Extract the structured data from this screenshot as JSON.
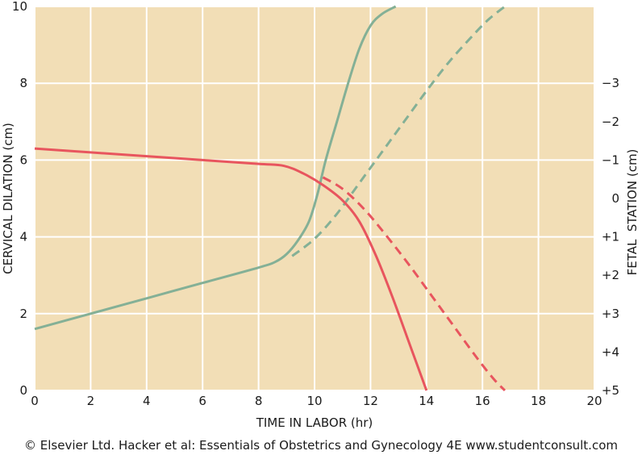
{
  "chart_data": {
    "type": "line",
    "xlabel": "TIME IN LABOR (hr)",
    "ylabel": "CERVICAL DILATION (cm)",
    "y2label": "FETAL  STATION (cm)",
    "xlim": [
      0,
      20
    ],
    "ylim": [
      0,
      10
    ],
    "y2lim": [
      5,
      -5
    ],
    "x_ticks": [
      "0",
      "2",
      "4",
      "6",
      "8",
      "10",
      "12",
      "14",
      "16",
      "18",
      "20"
    ],
    "y_ticks": [
      "0",
      "2",
      "4",
      "6",
      "8",
      "10"
    ],
    "y2_ticks": [
      "+5",
      "+4",
      "+3",
      "+2",
      "+1",
      "0",
      "−1",
      "−2",
      "−3"
    ],
    "y2_tick_values": [
      5,
      4,
      3,
      2,
      1,
      0,
      -1,
      -2,
      -3
    ],
    "grid": true,
    "colors": {
      "background": "#f2deb6",
      "grid": "#ffffff",
      "dilation": "#84b096",
      "station": "#e8555e"
    },
    "series": [
      {
        "axis": "left",
        "color_key": "dilation",
        "dash": false,
        "x": [
          0,
          2,
          4,
          6,
          8,
          8.6,
          9.0,
          9.4,
          9.8,
          10.1,
          10.4,
          10.8,
          11.2,
          11.6,
          12.0,
          12.4,
          12.9
        ],
        "y": [
          1.6,
          2.0,
          2.4,
          2.8,
          3.2,
          3.35,
          3.55,
          3.9,
          4.4,
          5.1,
          6.0,
          7.0,
          8.0,
          8.9,
          9.5,
          9.8,
          10.0
        ]
      },
      {
        "axis": "left",
        "color_key": "dilation",
        "dash": true,
        "x": [
          9.2,
          10.0,
          10.8,
          11.6,
          12.4,
          13.2,
          14.0,
          14.8,
          15.6,
          16.2,
          16.8
        ],
        "y": [
          3.5,
          3.95,
          4.6,
          5.4,
          6.2,
          7.0,
          7.8,
          8.55,
          9.2,
          9.65,
          10.0
        ]
      },
      {
        "axis": "right",
        "color_key": "station",
        "dash": false,
        "x": [
          0,
          2,
          4,
          6,
          8,
          8.9,
          9.6,
          10.3,
          11.0,
          11.6,
          12.2,
          12.8,
          13.4,
          14.0
        ],
        "y": [
          -1.3,
          -1.2,
          -1.1,
          -1.0,
          -0.9,
          -0.85,
          -0.65,
          -0.35,
          0.05,
          0.6,
          1.5,
          2.6,
          3.8,
          5.0
        ]
      },
      {
        "axis": "right",
        "color_key": "station",
        "dash": true,
        "x": [
          10.3,
          11.0,
          11.8,
          12.6,
          13.4,
          14.2,
          15.0,
          15.8,
          16.4,
          16.8
        ],
        "y": [
          -0.55,
          -0.25,
          0.3,
          1.0,
          1.75,
          2.55,
          3.35,
          4.15,
          4.7,
          5.0
        ]
      }
    ]
  },
  "footer": {
    "copyright": "© Elsevier Ltd. Hacker et al: Essentials of Obstetrics and Gynecology 4E www.studentconsult.com"
  }
}
